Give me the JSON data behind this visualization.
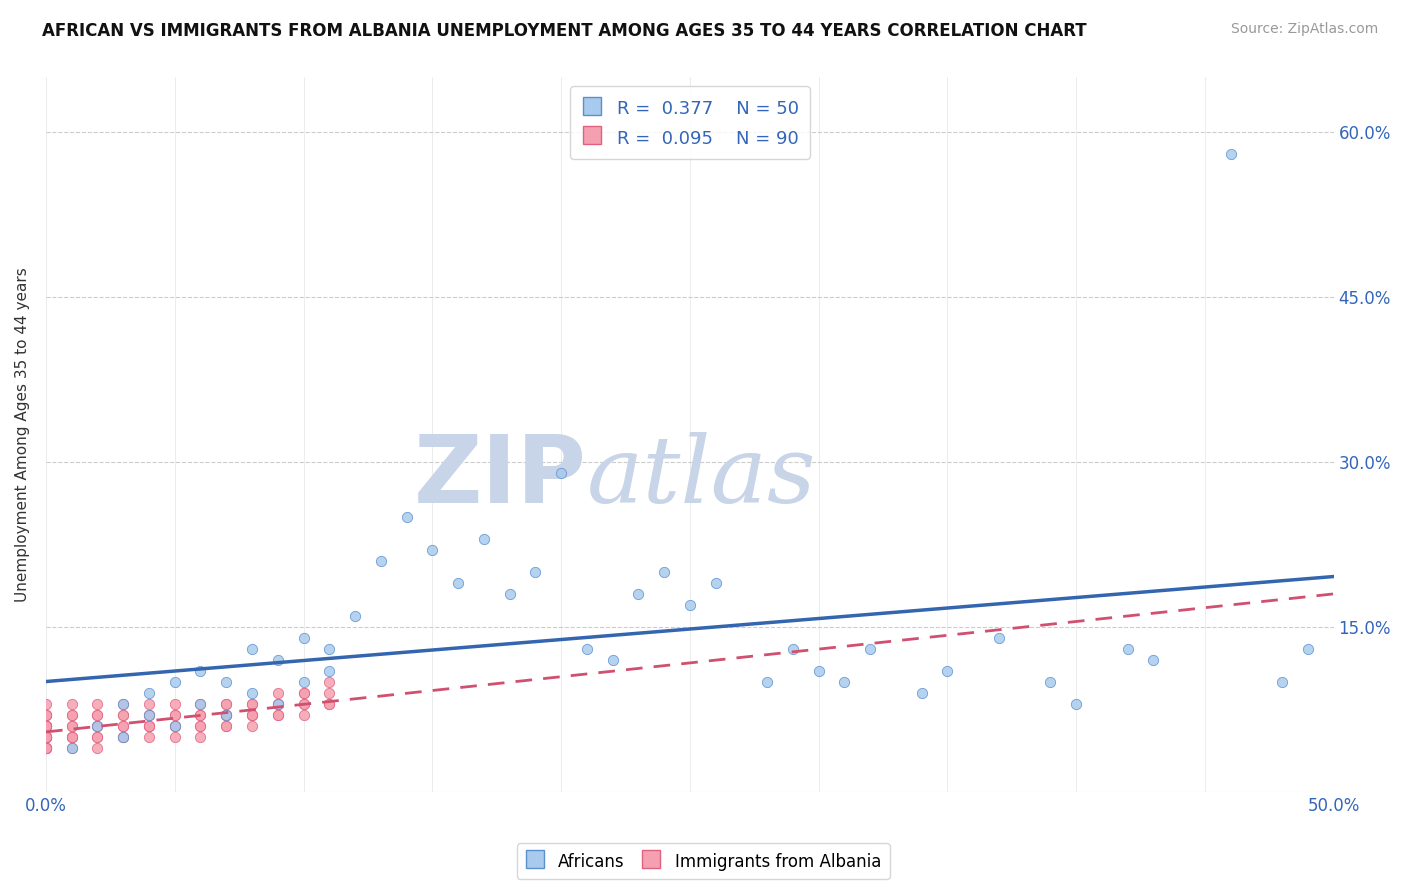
{
  "title": "AFRICAN VS IMMIGRANTS FROM ALBANIA UNEMPLOYMENT AMONG AGES 35 TO 44 YEARS CORRELATION CHART",
  "source": "Source: ZipAtlas.com",
  "ylabel": "Unemployment Among Ages 35 to 44 years",
  "xlim": [
    0.0,
    0.5
  ],
  "ylim": [
    0.0,
    0.65
  ],
  "africans_R": 0.377,
  "africans_N": 50,
  "albania_R": 0.095,
  "albania_N": 90,
  "blue_fill": "#A8CAEC",
  "blue_edge": "#5B8FD0",
  "blue_line": "#3466B0",
  "pink_fill": "#F5A0B0",
  "pink_edge": "#E06080",
  "pink_line": "#D05070",
  "watermark_zip": "ZIP",
  "watermark_atlas": "atlas",
  "watermark_color": "#C8D4E8",
  "africans_x": [
    0.01,
    0.02,
    0.03,
    0.03,
    0.04,
    0.04,
    0.05,
    0.05,
    0.06,
    0.06,
    0.07,
    0.07,
    0.08,
    0.08,
    0.09,
    0.09,
    0.1,
    0.1,
    0.11,
    0.11,
    0.12,
    0.13,
    0.14,
    0.15,
    0.16,
    0.17,
    0.18,
    0.19,
    0.2,
    0.21,
    0.22,
    0.23,
    0.24,
    0.25,
    0.26,
    0.28,
    0.29,
    0.3,
    0.31,
    0.32,
    0.34,
    0.35,
    0.37,
    0.39,
    0.4,
    0.42,
    0.43,
    0.46,
    0.48,
    0.49
  ],
  "africans_y": [
    0.04,
    0.06,
    0.05,
    0.08,
    0.07,
    0.09,
    0.06,
    0.1,
    0.08,
    0.11,
    0.07,
    0.1,
    0.09,
    0.13,
    0.08,
    0.12,
    0.1,
    0.14,
    0.11,
    0.13,
    0.16,
    0.21,
    0.25,
    0.22,
    0.19,
    0.23,
    0.18,
    0.2,
    0.29,
    0.13,
    0.12,
    0.18,
    0.2,
    0.17,
    0.19,
    0.1,
    0.13,
    0.11,
    0.1,
    0.13,
    0.09,
    0.11,
    0.14,
    0.1,
    0.08,
    0.13,
    0.12,
    0.58,
    0.1,
    0.13
  ],
  "albania_x": [
    0.0,
    0.0,
    0.0,
    0.0,
    0.0,
    0.0,
    0.0,
    0.0,
    0.0,
    0.0,
    0.0,
    0.0,
    0.0,
    0.0,
    0.0,
    0.0,
    0.0,
    0.0,
    0.0,
    0.0,
    0.01,
    0.01,
    0.01,
    0.01,
    0.01,
    0.01,
    0.01,
    0.01,
    0.01,
    0.02,
    0.02,
    0.02,
    0.02,
    0.02,
    0.02,
    0.02,
    0.02,
    0.03,
    0.03,
    0.03,
    0.03,
    0.03,
    0.03,
    0.03,
    0.04,
    0.04,
    0.04,
    0.04,
    0.04,
    0.04,
    0.04,
    0.05,
    0.05,
    0.05,
    0.05,
    0.05,
    0.05,
    0.06,
    0.06,
    0.06,
    0.06,
    0.06,
    0.06,
    0.07,
    0.07,
    0.07,
    0.07,
    0.07,
    0.07,
    0.07,
    0.08,
    0.08,
    0.08,
    0.08,
    0.08,
    0.08,
    0.09,
    0.09,
    0.09,
    0.09,
    0.09,
    0.1,
    0.1,
    0.1,
    0.1,
    0.1,
    0.11,
    0.11,
    0.11,
    0.11
  ],
  "albania_y": [
    0.04,
    0.05,
    0.06,
    0.04,
    0.05,
    0.06,
    0.07,
    0.04,
    0.05,
    0.06,
    0.07,
    0.05,
    0.06,
    0.04,
    0.05,
    0.06,
    0.07,
    0.04,
    0.05,
    0.08,
    0.05,
    0.06,
    0.07,
    0.04,
    0.05,
    0.06,
    0.07,
    0.08,
    0.05,
    0.06,
    0.07,
    0.04,
    0.05,
    0.06,
    0.07,
    0.08,
    0.05,
    0.06,
    0.07,
    0.05,
    0.06,
    0.07,
    0.08,
    0.05,
    0.06,
    0.07,
    0.05,
    0.06,
    0.07,
    0.08,
    0.06,
    0.07,
    0.05,
    0.06,
    0.07,
    0.08,
    0.06,
    0.07,
    0.06,
    0.07,
    0.08,
    0.05,
    0.06,
    0.07,
    0.08,
    0.06,
    0.07,
    0.08,
    0.06,
    0.07,
    0.07,
    0.08,
    0.06,
    0.07,
    0.08,
    0.07,
    0.07,
    0.08,
    0.07,
    0.08,
    0.09,
    0.08,
    0.07,
    0.09,
    0.08,
    0.09,
    0.08,
    0.09,
    0.08,
    0.1
  ]
}
